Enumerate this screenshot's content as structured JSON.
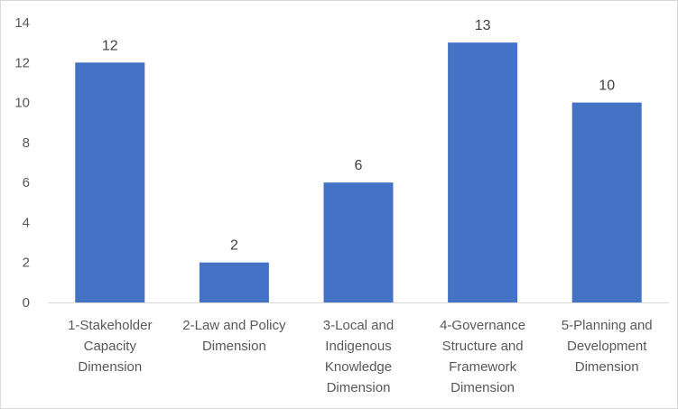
{
  "chart_data": {
    "type": "bar",
    "categories": [
      "1-Stakeholder Capacity Dimension",
      "2-Law and Policy Dimension",
      "3-Local and Indigenous Knowledge Dimension",
      "4-Governance Structure and Framework Dimension",
      "5-Planning and Development Dimension"
    ],
    "category_lines": [
      [
        "1-Stakeholder",
        "Capacity",
        "Dimension"
      ],
      [
        "2-Law and Policy",
        "Dimension"
      ],
      [
        "3-Local and",
        "Indigenous",
        "Knowledge",
        "Dimension"
      ],
      [
        "4-Governance",
        "Structure and",
        "Framework",
        "Dimension"
      ],
      [
        "5-Planning and",
        "Development",
        "Dimension"
      ]
    ],
    "values": [
      12,
      2,
      6,
      13,
      10
    ],
    "data_labels": [
      "12",
      "2",
      "6",
      "13",
      "10"
    ],
    "yticks": [
      "0",
      "2",
      "4",
      "6",
      "8",
      "10",
      "12",
      "14"
    ],
    "ylim": [
      0,
      14
    ],
    "title": "",
    "xlabel": "",
    "ylabel": "",
    "grid": false,
    "legend": "none",
    "colors": {
      "bar": "#4472c4",
      "axis": "#d9d9d9",
      "text": "#595959",
      "label": "#404040"
    }
  }
}
